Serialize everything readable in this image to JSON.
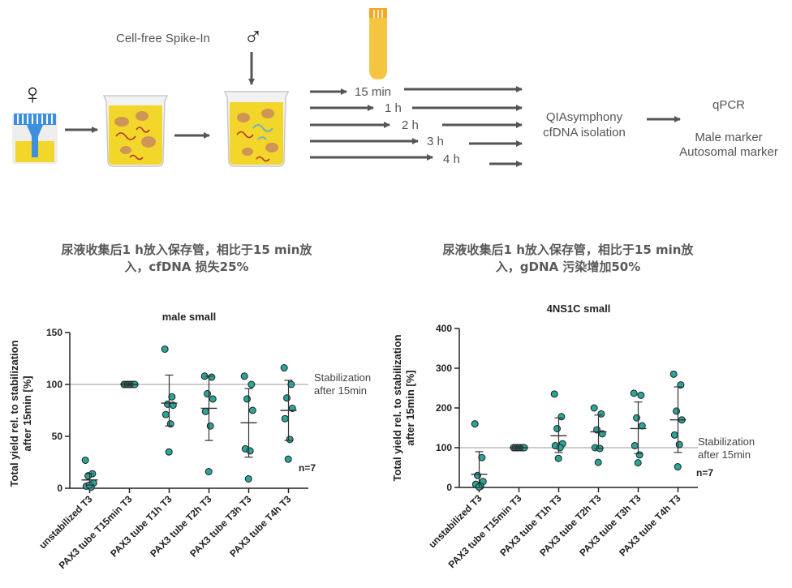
{
  "workflow": {
    "spike_in_label": "Cell-free Spike-In",
    "female_symbol": "♀",
    "male_symbol": "♂",
    "time_labels": [
      "15 min",
      "1 h",
      "2 h",
      "3 h",
      "4 h"
    ],
    "isolation_line1": "QIAsymphony",
    "isolation_line2": "cfDNA isolation",
    "qpcr_label": "qPCR",
    "marker1": "Male marker",
    "marker2": "Autosomal marker"
  },
  "headings": {
    "left_line1": "尿液收集后1 h放入保存管，相比于15 min放",
    "left_line2": "入，cfDNA 损失25%",
    "right_line1": "尿液收集后1 h放入保存管，相比于15 min放",
    "right_line2": "入，gDNA 污染增加50%"
  },
  "colors": {
    "point_fill": "#2aa59a",
    "point_stroke": "#1f1f1f",
    "arrow": "#555555",
    "tube_blue": "#3d8fe0",
    "liquid": "#f2d629",
    "tube_orange": "#f5a623"
  },
  "chart_data": [
    {
      "type": "scatter",
      "title": "male small",
      "ylabel": "Total yield rel. to stabilization after 15min [%]",
      "ylabel_line1": "Total yield rel. to stabilization",
      "ylabel_line2": "after 15min [%]",
      "categories": [
        "unstabilized T3",
        "PAX3 tube T15min T3",
        "PAX3 tube T1h T3",
        "PAX3 tube T2h T3",
        "PAX3 tube T3h T3",
        "PAX3 tube T4h T3"
      ],
      "ylim": [
        0,
        150
      ],
      "yticks": [
        0,
        50,
        100,
        150
      ],
      "reference_line": 100,
      "reference_label_line1": "Stabilization",
      "reference_label_line2": "after 15min",
      "n_label": "n=7",
      "points": [
        [
          27,
          14,
          12,
          5,
          2,
          1,
          3
        ],
        [
          100,
          100,
          100,
          100,
          100,
          100,
          100
        ],
        [
          134,
          88,
          81,
          80,
          71,
          62,
          35
        ],
        [
          108,
          107,
          91,
          86,
          74,
          60,
          16
        ],
        [
          108,
          100,
          86,
          75,
          38,
          36,
          9
        ],
        [
          116,
          100,
          87,
          77,
          67,
          47,
          28
        ]
      ],
      "means": [
        8,
        100,
        82,
        77,
        63,
        75
      ],
      "sd_low": [
        3,
        99,
        60,
        46,
        30,
        46
      ],
      "sd_high": [
        14,
        101,
        109,
        108,
        96,
        104
      ]
    },
    {
      "type": "scatter",
      "title": "4NS1C small",
      "ylabel": "Total yield rel. to stabilization after 15min [%]",
      "ylabel_line1": "Total yield rel. to stabilization",
      "ylabel_line2": "after 15min [%]",
      "categories": [
        "unstabilized T3",
        "PAX3 tube T15min T3",
        "PAX3 tube T1h T3",
        "PAX3 tube T2h T3",
        "PAX3 tube T3h T3",
        "PAX3 tube T4h T3"
      ],
      "ylim": [
        0,
        400
      ],
      "yticks": [
        0,
        100,
        200,
        300,
        400
      ],
      "reference_line": 100,
      "reference_label_line1": "Stabilization",
      "reference_label_line2": "after 15min",
      "n_label": "n=7",
      "points": [
        [
          160,
          75,
          30,
          15,
          8,
          3,
          1
        ],
        [
          100,
          100,
          100,
          100,
          100,
          100,
          100
        ],
        [
          235,
          178,
          148,
          110,
          105,
          100,
          73
        ],
        [
          200,
          185,
          145,
          135,
          100,
          98,
          63
        ],
        [
          237,
          232,
          175,
          155,
          105,
          82,
          62
        ],
        [
          285,
          258,
          192,
          170,
          132,
          108,
          52
        ]
      ],
      "means": [
        33,
        100,
        130,
        140,
        148,
        170
      ],
      "sd_low": [
        0,
        97,
        88,
        98,
        85,
        88
      ],
      "sd_high": [
        90,
        103,
        175,
        182,
        215,
        253
      ]
    }
  ]
}
